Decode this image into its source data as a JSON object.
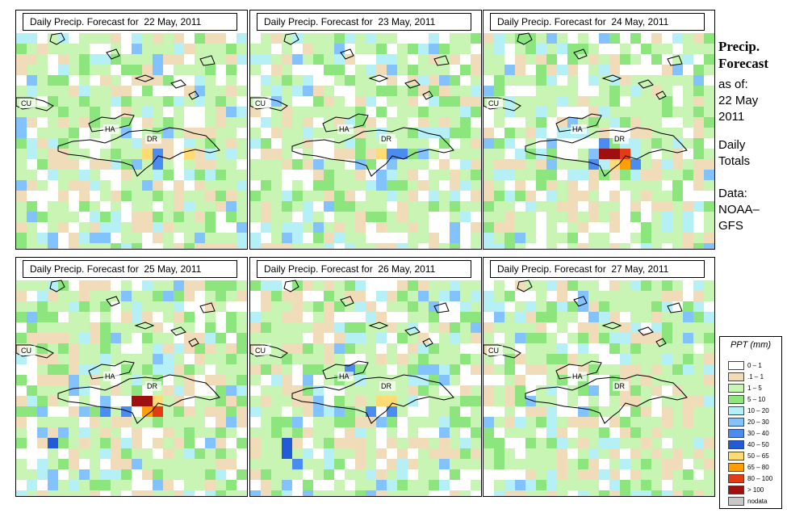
{
  "panels": [
    {
      "title": "Daily Precip. Forecast for  22 May, 2011",
      "labels": {
        "cu": "CU",
        "ha": "HA",
        "dr": "DR"
      },
      "hotspots": [
        {
          "c": [
            10,
            9
          ],
          "v": "1-5"
        }
      ]
    },
    {
      "title": "Daily Precip. Forecast for  23 May, 2011",
      "labels": {
        "cu": "CU",
        "ha": "HA",
        "dr": "DR"
      }
    },
    {
      "title": "Daily Precip. Forecast for  24 May, 2011",
      "labels": {
        "cu": "CU",
        "ha": "HA",
        "dr": "DR"
      }
    },
    {
      "title": "Daily Precip. Forecast for  25 May, 2011",
      "labels": {
        "cu": "CU",
        "ha": "HA",
        "dr": "DR"
      }
    },
    {
      "title": "Daily Precip. Forecast for  26 May, 2011",
      "labels": {
        "cu": "CU",
        "ha": "HA",
        "dr": "DR"
      }
    },
    {
      "title": "Daily Precip. Forecast for  27 May, 2011",
      "labels": {
        "cu": "CU",
        "ha": "HA",
        "dr": "DR"
      }
    }
  ],
  "sidebar": {
    "heading1": "Precip.",
    "heading2": "Forecast",
    "asof_label": "as of:",
    "date1": "22 May",
    "date2": "2011",
    "totals1": "Daily",
    "totals2": "Totals",
    "data1": "Data:",
    "data2": "NOAA–",
    "data3": "GFS"
  },
  "legend": {
    "title": "PPT (mm)",
    "entries": [
      {
        "label": "0 – 1",
        "color": "#ffffff"
      },
      {
        "label": ".1 – 1",
        "color": "#f0dcb9"
      },
      {
        "label": "1 – 5",
        "color": "#c8f5b4"
      },
      {
        "label": "5 – 10",
        "color": "#8ce67d"
      },
      {
        "label": "10 – 20",
        "color": "#b4f0f5"
      },
      {
        "label": "20 – 30",
        "color": "#82c3ff"
      },
      {
        "label": "30 – 40",
        "color": "#4b8cf0"
      },
      {
        "label": "40 – 50",
        "color": "#235ad7"
      },
      {
        "label": "50 – 65",
        "color": "#ffdc73"
      },
      {
        "label": "65 – 80",
        "color": "#ffa000"
      },
      {
        "label": "80 – 100",
        "color": "#e13c14"
      },
      {
        "label": "> 100",
        "color": "#a00f0f"
      },
      {
        "label": "nodata",
        "color": "#c8c8c8"
      }
    ]
  }
}
